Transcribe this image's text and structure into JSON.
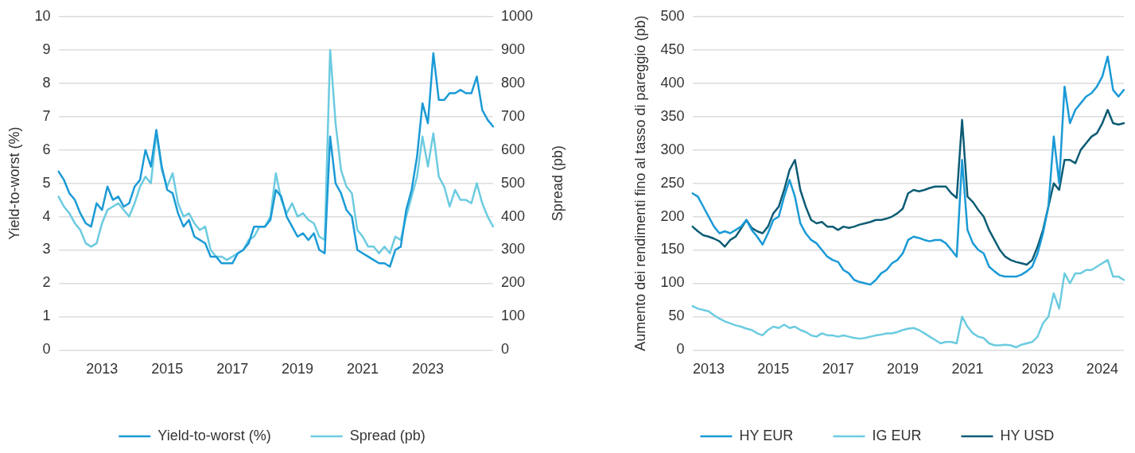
{
  "chart_data": [
    {
      "type": "line",
      "ylabel": "Yield-to-worst (%)",
      "y2label": "Spread (pb)",
      "categories": [
        null,
        null,
        null,
        null,
        null,
        null,
        null,
        null,
        "2013",
        null,
        null,
        null,
        null,
        null,
        null,
        null,
        null,
        null,
        null,
        null,
        "2015",
        null,
        null,
        null,
        null,
        null,
        null,
        null,
        null,
        null,
        null,
        null,
        "2017",
        null,
        null,
        null,
        null,
        null,
        null,
        null,
        null,
        null,
        null,
        null,
        "2019",
        null,
        null,
        null,
        null,
        null,
        null,
        null,
        null,
        null,
        null,
        null,
        "2021",
        null,
        null,
        null,
        null,
        null,
        null,
        null,
        null,
        null,
        null,
        null,
        "2023",
        null,
        null,
        null,
        null,
        null,
        null,
        null,
        null,
        null,
        null,
        null,
        null
      ],
      "series": [
        {
          "name": "Yield-to-worst (%)",
          "color": "#1a9ad6",
          "values": [
            5.35,
            5.1,
            4.7,
            4.5,
            4.1,
            3.8,
            3.7,
            4.4,
            4.2,
            4.9,
            4.5,
            4.6,
            4.3,
            4.4,
            4.9,
            5.1,
            6.0,
            5.5,
            6.6,
            5.5,
            4.8,
            4.7,
            4.1,
            3.7,
            3.9,
            3.4,
            3.3,
            3.2,
            2.8,
            2.8,
            2.6,
            2.6,
            2.6,
            2.9,
            3.0,
            3.2,
            3.7,
            3.7,
            3.7,
            3.9,
            4.8,
            4.6,
            4.0,
            3.7,
            3.4,
            3.5,
            3.3,
            3.5,
            3.0,
            2.9,
            6.4,
            5.0,
            4.7,
            4.2,
            4.0,
            3.0,
            2.9,
            2.8,
            2.7,
            2.6,
            2.6,
            2.5,
            3.0,
            3.1,
            4.2,
            4.8,
            5.8,
            7.4,
            6.8,
            8.9,
            7.5,
            7.5,
            7.7,
            7.7,
            7.8,
            7.7,
            7.7,
            8.2,
            7.2,
            6.9,
            6.7
          ]
        },
        {
          "name": "Spread (pb)",
          "color": "#6ccbe0",
          "axis": "y2",
          "values": [
            460,
            430,
            410,
            380,
            360,
            320,
            310,
            320,
            380,
            420,
            430,
            440,
            420,
            400,
            440,
            490,
            520,
            500,
            650,
            540,
            490,
            530,
            440,
            400,
            410,
            380,
            360,
            370,
            300,
            280,
            280,
            270,
            280,
            290,
            300,
            330,
            340,
            370,
            370,
            400,
            530,
            450,
            410,
            440,
            400,
            410,
            390,
            380,
            340,
            330,
            900,
            680,
            540,
            490,
            470,
            360,
            340,
            310,
            310,
            290,
            310,
            290,
            340,
            330,
            400,
            460,
            520,
            640,
            550,
            650,
            520,
            490,
            430,
            480,
            450,
            450,
            440,
            500,
            440,
            400,
            370
          ]
        }
      ],
      "ylim": [
        0,
        10
      ],
      "yticks": [
        0,
        1,
        2,
        3,
        4,
        5,
        6,
        7,
        8,
        9,
        10
      ],
      "y2lim": [
        0,
        1000
      ],
      "y2ticks": [
        0,
        100,
        200,
        300,
        400,
        500,
        600,
        700,
        800,
        900,
        1000
      ],
      "grid": "y",
      "legend": "bottom"
    },
    {
      "type": "line",
      "ylabel": "Aumento dei rendimenti fino al tasso di pareggio (pb)",
      "categories": [
        null,
        null,
        null,
        "2013",
        null,
        null,
        null,
        null,
        null,
        null,
        null,
        null,
        null,
        null,
        null,
        "2015",
        null,
        null,
        null,
        null,
        null,
        null,
        null,
        null,
        null,
        null,
        null,
        "2017",
        null,
        null,
        null,
        null,
        null,
        null,
        null,
        null,
        null,
        null,
        null,
        "2019",
        null,
        null,
        null,
        null,
        null,
        null,
        null,
        null,
        null,
        null,
        null,
        "2021",
        null,
        null,
        null,
        null,
        null,
        null,
        null,
        null,
        null,
        null,
        null,
        null,
        "2023",
        null,
        null,
        null,
        null,
        null,
        null,
        null,
        null,
        null,
        null,
        null,
        "2024",
        null,
        null,
        null,
        null
      ],
      "series": [
        {
          "name": "HY EUR",
          "color": "#1a9ad6",
          "values": [
            235,
            230,
            215,
            200,
            185,
            175,
            178,
            175,
            180,
            185,
            195,
            180,
            170,
            158,
            175,
            195,
            200,
            230,
            255,
            230,
            190,
            175,
            165,
            160,
            150,
            140,
            135,
            132,
            120,
            115,
            105,
            102,
            100,
            98,
            105,
            115,
            120,
            130,
            135,
            145,
            165,
            170,
            168,
            165,
            163,
            165,
            165,
            160,
            150,
            140,
            285,
            180,
            160,
            150,
            145,
            125,
            118,
            112,
            110,
            110,
            110,
            113,
            118,
            125,
            145,
            175,
            215,
            320,
            250,
            395,
            340,
            360,
            370,
            380,
            385,
            395,
            410,
            440,
            390,
            380,
            390
          ]
        },
        {
          "name": "IG EUR",
          "color": "#6ccbe0",
          "values": [
            66,
            62,
            60,
            58,
            52,
            47,
            43,
            40,
            37,
            35,
            32,
            30,
            25,
            22,
            30,
            35,
            33,
            38,
            33,
            35,
            30,
            27,
            22,
            20,
            25,
            22,
            22,
            20,
            22,
            20,
            18,
            17,
            18,
            20,
            22,
            23,
            25,
            25,
            27,
            30,
            32,
            33,
            30,
            25,
            20,
            15,
            10,
            12,
            12,
            10,
            50,
            35,
            25,
            20,
            18,
            10,
            7,
            7,
            8,
            7,
            4,
            8,
            10,
            12,
            20,
            40,
            50,
            85,
            62,
            115,
            100,
            115,
            115,
            120,
            120,
            125,
            130,
            135,
            110,
            110,
            105
          ]
        },
        {
          "name": "HY USD",
          "color": "#0d5c75",
          "values": [
            185,
            178,
            172,
            170,
            167,
            163,
            155,
            165,
            170,
            182,
            195,
            183,
            178,
            175,
            185,
            205,
            215,
            240,
            270,
            285,
            240,
            215,
            195,
            190,
            192,
            185,
            185,
            180,
            185,
            183,
            185,
            188,
            190,
            192,
            195,
            195,
            197,
            200,
            205,
            212,
            235,
            240,
            238,
            240,
            243,
            245,
            245,
            245,
            235,
            228,
            345,
            230,
            222,
            210,
            200,
            180,
            165,
            150,
            140,
            135,
            132,
            130,
            128,
            135,
            155,
            180,
            215,
            250,
            240,
            285,
            285,
            280,
            300,
            310,
            320,
            325,
            340,
            360,
            340,
            338,
            340
          ]
        }
      ],
      "ylim": [
        0,
        500
      ],
      "yticks": [
        0,
        50,
        100,
        150,
        200,
        250,
        300,
        350,
        400,
        450,
        500
      ],
      "grid": "y",
      "legend": "bottom"
    }
  ]
}
